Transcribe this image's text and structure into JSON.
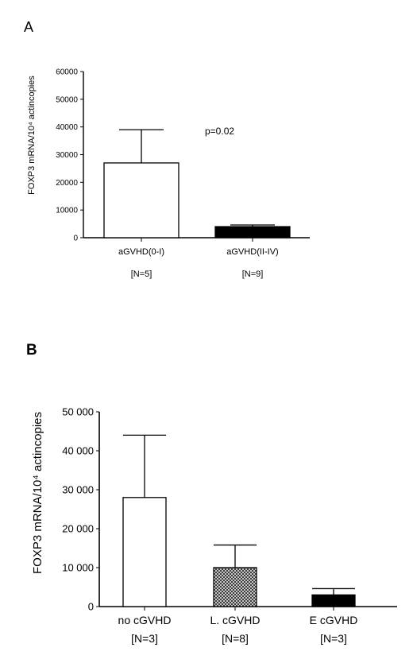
{
  "chart_data": [
    {
      "type": "bar",
      "panel_label": "A",
      "ylabel": "FOXP3 mRNA/10⁴ actincopies",
      "ylim": [
        0,
        60000
      ],
      "yticks": [
        "0",
        "10000",
        "20000",
        "30000",
        "40000",
        "50000",
        "60000"
      ],
      "ytick_values": [
        0,
        10000,
        20000,
        30000,
        40000,
        50000,
        60000
      ],
      "categories": [
        "aGVHD(0-I)",
        "aGVHD(II-IV)"
      ],
      "category_n": [
        "[N=5]",
        "[N=9]"
      ],
      "values": [
        27000,
        4000
      ],
      "error": [
        12000,
        600
      ],
      "fills": [
        "#ffffff",
        "#000000"
      ],
      "annotation": "p=0.02",
      "grid": false
    },
    {
      "type": "bar",
      "panel_label": "B",
      "ylabel": "FOXP3 mRNA/10⁴ actincopies",
      "ylim": [
        0,
        50000
      ],
      "yticks": [
        "0",
        "10 000",
        "20 000",
        "30 000",
        "40 000",
        "50 000"
      ],
      "ytick_values": [
        0,
        10000,
        20000,
        30000,
        40000,
        50000
      ],
      "categories": [
        "no cGVHD",
        "L. cGVHD",
        "E cGVHD"
      ],
      "category_n": [
        "[N=3]",
        "[N=8]",
        "[N=3]"
      ],
      "values": [
        28000,
        10000,
        3000
      ],
      "error": [
        16000,
        5800,
        1600
      ],
      "fills": [
        "#ffffff",
        "hatch",
        "#000000"
      ],
      "grid": false
    }
  ]
}
